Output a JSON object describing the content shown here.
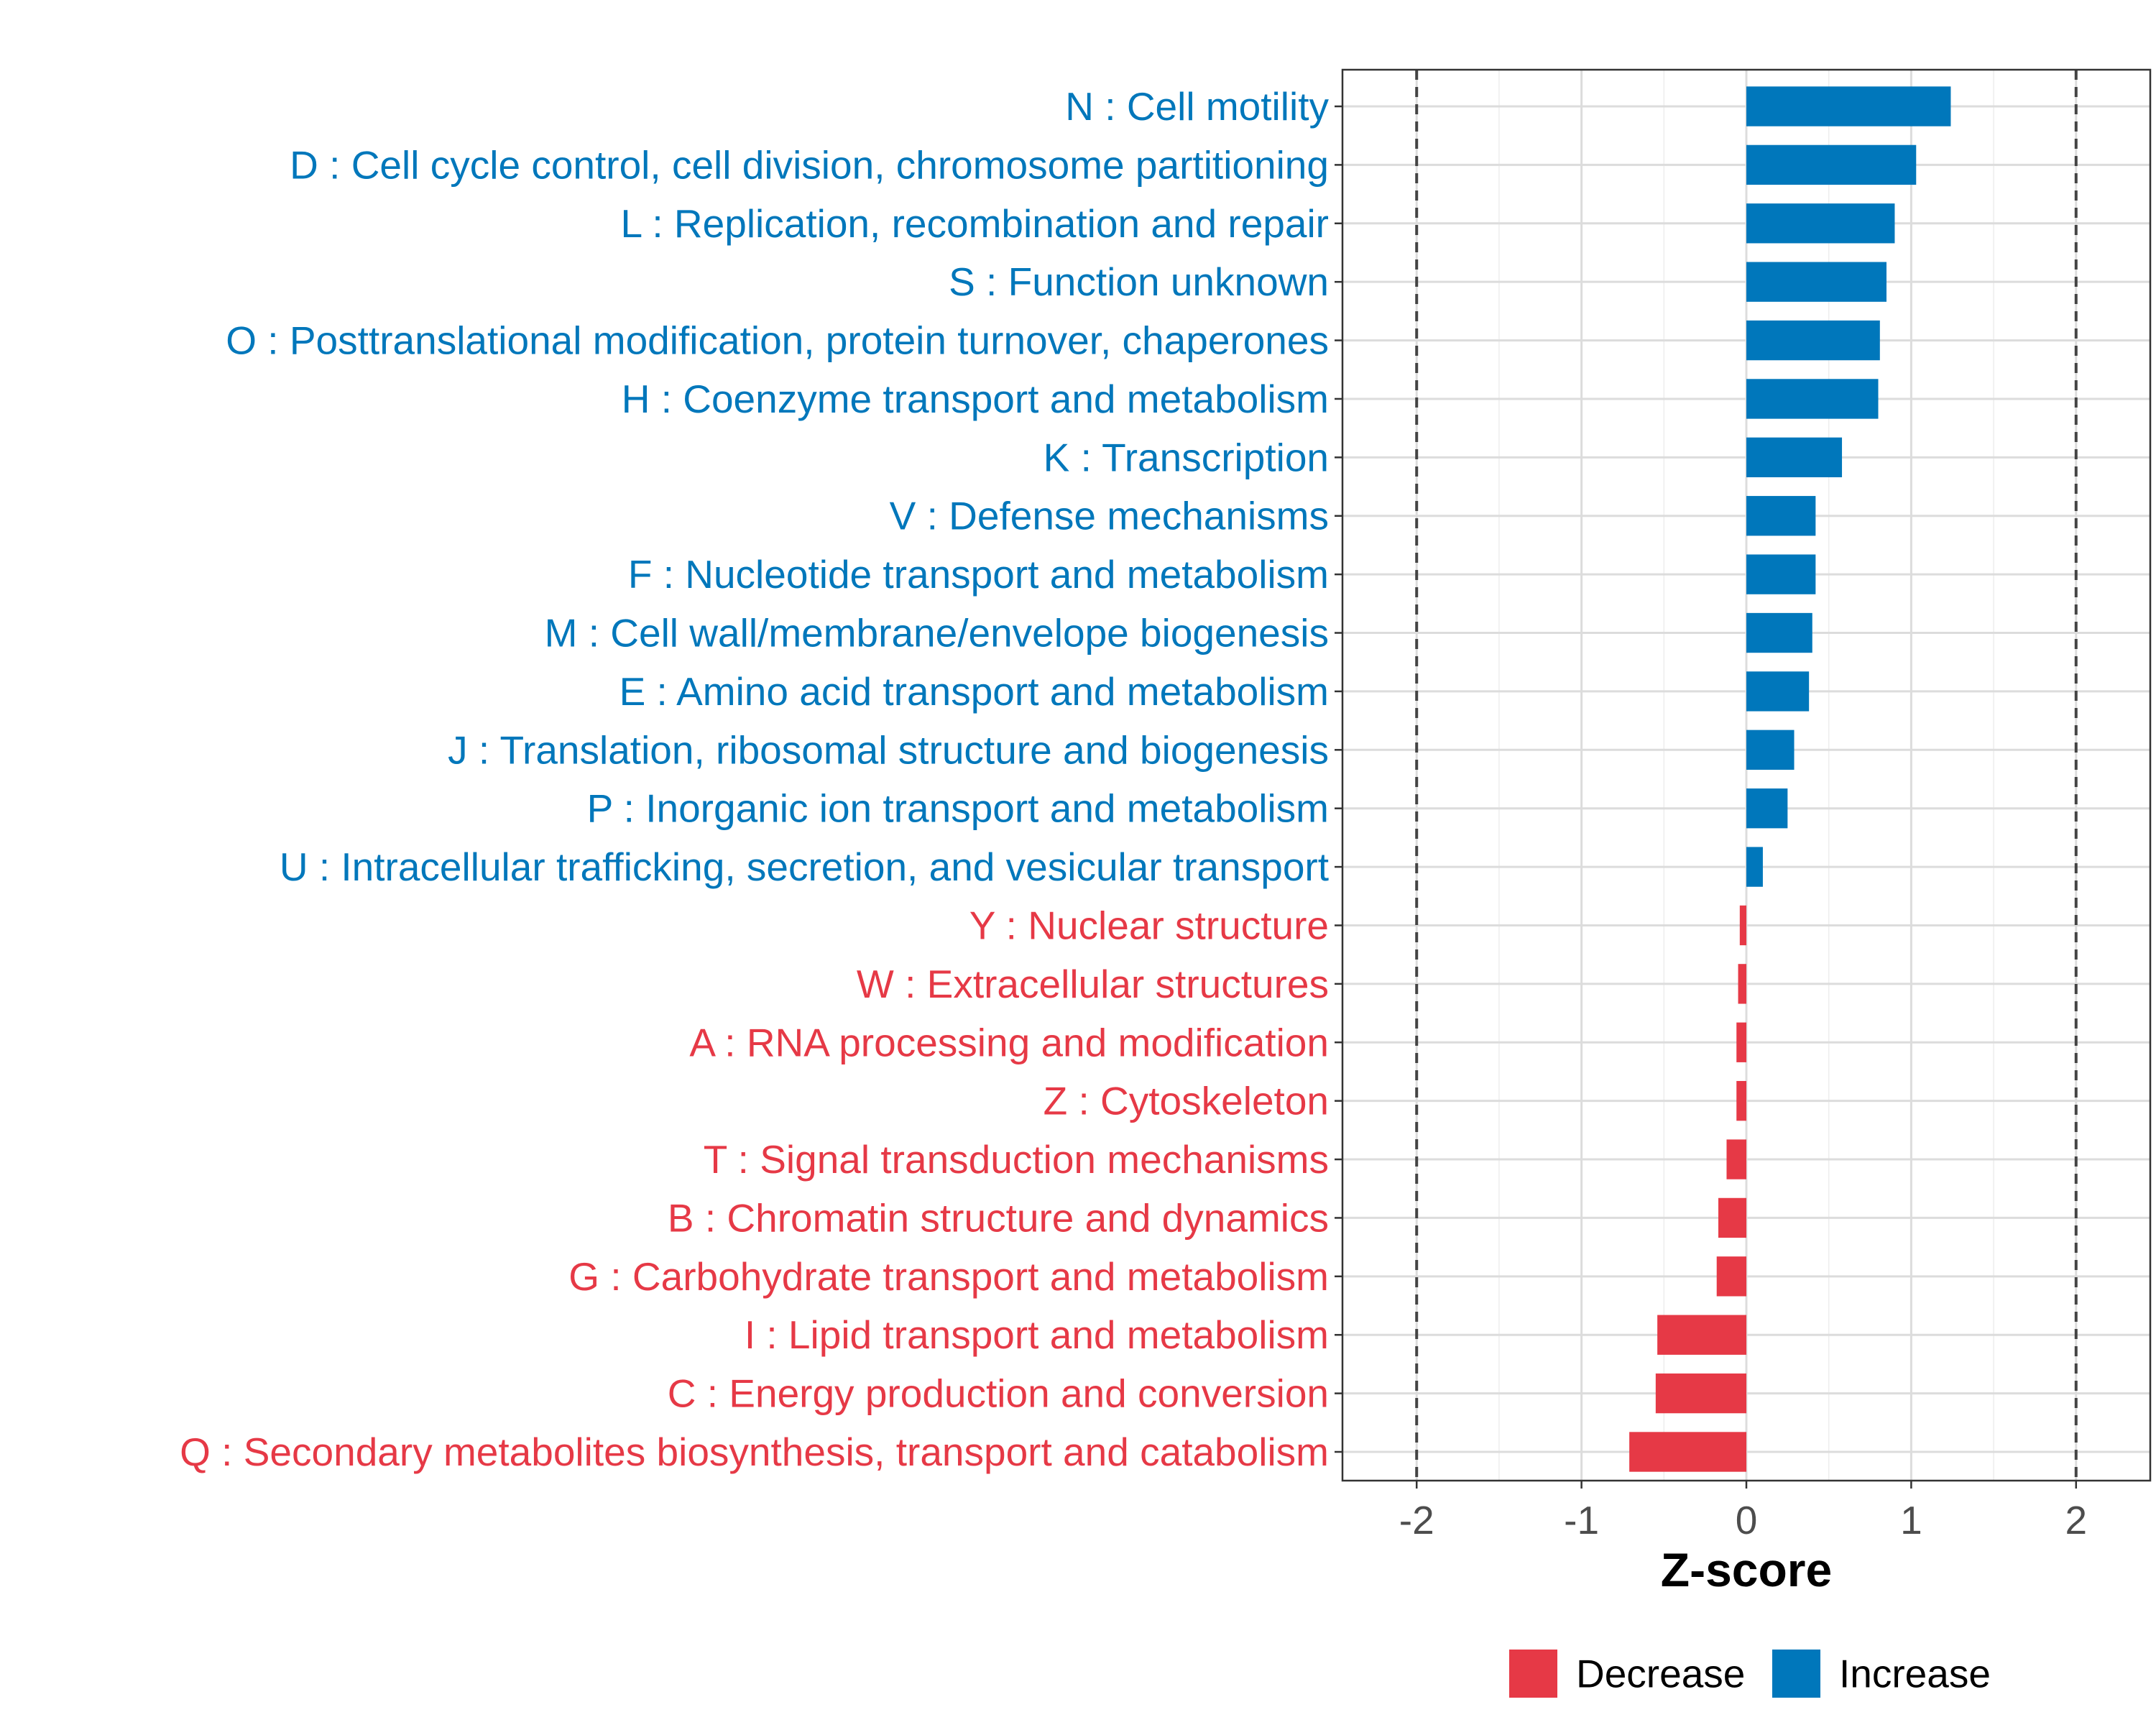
{
  "chart_data": {
    "type": "bar",
    "orientation": "horizontal",
    "xlabel": "Z-score",
    "xlim": [
      -2.45,
      2.45
    ],
    "xticks": [
      -2,
      -1,
      0,
      1,
      2
    ],
    "xtick_labels": [
      "-2",
      "-1",
      "0",
      "1",
      "2"
    ],
    "reference_lines": [
      -2,
      2
    ],
    "grid": true,
    "colors": {
      "Increase": "#0077bb",
      "Decrease": "#e63946"
    },
    "categories": [
      "N : Cell motility",
      "D : Cell cycle control, cell division, chromosome partitioning",
      "L : Replication, recombination and repair",
      "S : Function unknown",
      "O : Posttranslational modification, protein turnover, chaperones",
      "H : Coenzyme transport and metabolism",
      "K : Transcription",
      "V : Defense mechanisms",
      "F : Nucleotide transport and metabolism",
      "M : Cell wall/membrane/envelope biogenesis",
      "E : Amino acid transport and metabolism",
      "J : Translation, ribosomal structure and biogenesis",
      "P : Inorganic ion transport and metabolism",
      "U : Intracellular trafficking, secretion, and vesicular transport",
      "Y : Nuclear structure",
      "W : Extracellular structures",
      "A : RNA processing and modification",
      "Z : Cytoskeleton",
      "T : Signal transduction mechanisms",
      "B : Chromatin structure and dynamics",
      "G : Carbohydrate transport and metabolism",
      "I : Lipid transport and metabolism",
      "C : Energy production and conversion",
      "Q : Secondary metabolites biosynthesis, transport and catabolism"
    ],
    "values": [
      1.24,
      1.03,
      0.9,
      0.85,
      0.81,
      0.8,
      0.58,
      0.42,
      0.42,
      0.4,
      0.38,
      0.29,
      0.25,
      0.1,
      -0.04,
      -0.05,
      -0.06,
      -0.06,
      -0.12,
      -0.17,
      -0.18,
      -0.54,
      -0.55,
      -0.71
    ],
    "groups": [
      "Increase",
      "Increase",
      "Increase",
      "Increase",
      "Increase",
      "Increase",
      "Increase",
      "Increase",
      "Increase",
      "Increase",
      "Increase",
      "Increase",
      "Increase",
      "Increase",
      "Decrease",
      "Decrease",
      "Decrease",
      "Decrease",
      "Decrease",
      "Decrease",
      "Decrease",
      "Decrease",
      "Decrease",
      "Decrease"
    ],
    "legend": {
      "position": "bottom",
      "items": [
        {
          "label": "Decrease",
          "color": "#e63946"
        },
        {
          "label": "Increase",
          "color": "#0077bb"
        }
      ]
    }
  }
}
